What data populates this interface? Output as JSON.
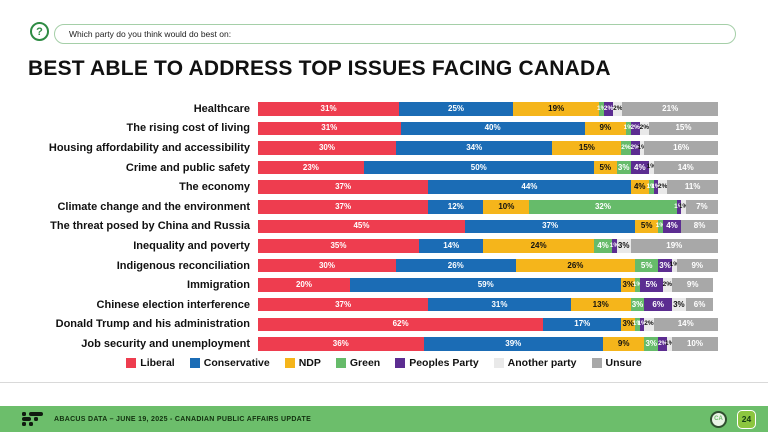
{
  "question_bar": {
    "icon": "question-mark-icon",
    "label": "Which party do you think would do best on:"
  },
  "title": "BEST ABLE TO ADDRESS TOP ISSUES FACING CANADA",
  "chart_data": {
    "type": "bar",
    "orientation": "horizontal",
    "stacked": true,
    "title": "BEST ABLE TO ADDRESS TOP ISSUES FACING CANADA",
    "xlim": [
      0,
      100
    ],
    "value_suffix": "%",
    "legend_position": "bottom",
    "categories": [
      "Healthcare",
      "The rising cost of living",
      "Housing affordability and accessibility",
      "Crime and public safety",
      "The economy",
      "Climate change and the environment",
      "The threat posed by China and Russia",
      "Inequality and poverty",
      "Indigenous reconciliation",
      "Immigration",
      "Chinese election interference",
      "Donald Trump and his administration",
      "Job security and unemployment"
    ],
    "series": [
      {
        "name": "Liberal",
        "color": "#ee3d4f",
        "label_color": "#ffffff",
        "values": [
          31,
          31,
          30,
          23,
          37,
          37,
          45,
          35,
          30,
          20,
          37,
          62,
          36
        ]
      },
      {
        "name": "Conservative",
        "color": "#1b6cb5",
        "label_color": "#ffffff",
        "values": [
          25,
          40,
          34,
          50,
          44,
          12,
          37,
          14,
          26,
          59,
          31,
          17,
          39
        ]
      },
      {
        "name": "NDP",
        "color": "#f5b51b",
        "label_color": "#111111",
        "values": [
          19,
          9,
          15,
          5,
          4,
          10,
          5,
          24,
          26,
          3,
          13,
          3,
          9
        ]
      },
      {
        "name": "Green",
        "color": "#66bb6a",
        "label_color": "#ffffff",
        "values": [
          1,
          1,
          2,
          3,
          1,
          32,
          1,
          4,
          5,
          1,
          3,
          1,
          3
        ]
      },
      {
        "name": "Peoples Party",
        "color": "#5c2d91",
        "label_color": "#ffffff",
        "values": [
          2,
          2,
          2,
          4,
          1,
          1,
          4,
          1,
          3,
          5,
          6,
          1,
          2
        ]
      },
      {
        "name": "Another party",
        "color": "#e9e9e9",
        "label_color": "#111111",
        "values": [
          2,
          2,
          1,
          1,
          2,
          1,
          0,
          3,
          1,
          2,
          3,
          2,
          1
        ]
      },
      {
        "name": "Unsure",
        "color": "#a8a8a8",
        "label_color": "#ffffff",
        "values": [
          21,
          15,
          16,
          14,
          11,
          7,
          8,
          19,
          9,
          9,
          6,
          14,
          10
        ]
      }
    ]
  },
  "footer": {
    "logo": "abacus-data-logo",
    "text": "ABACUS DATA – JUNE 19, 2025 - CANADIAN PUBLIC AFFAIRS UPDATE",
    "ca_logo_label": "CA",
    "page_number": "24"
  }
}
